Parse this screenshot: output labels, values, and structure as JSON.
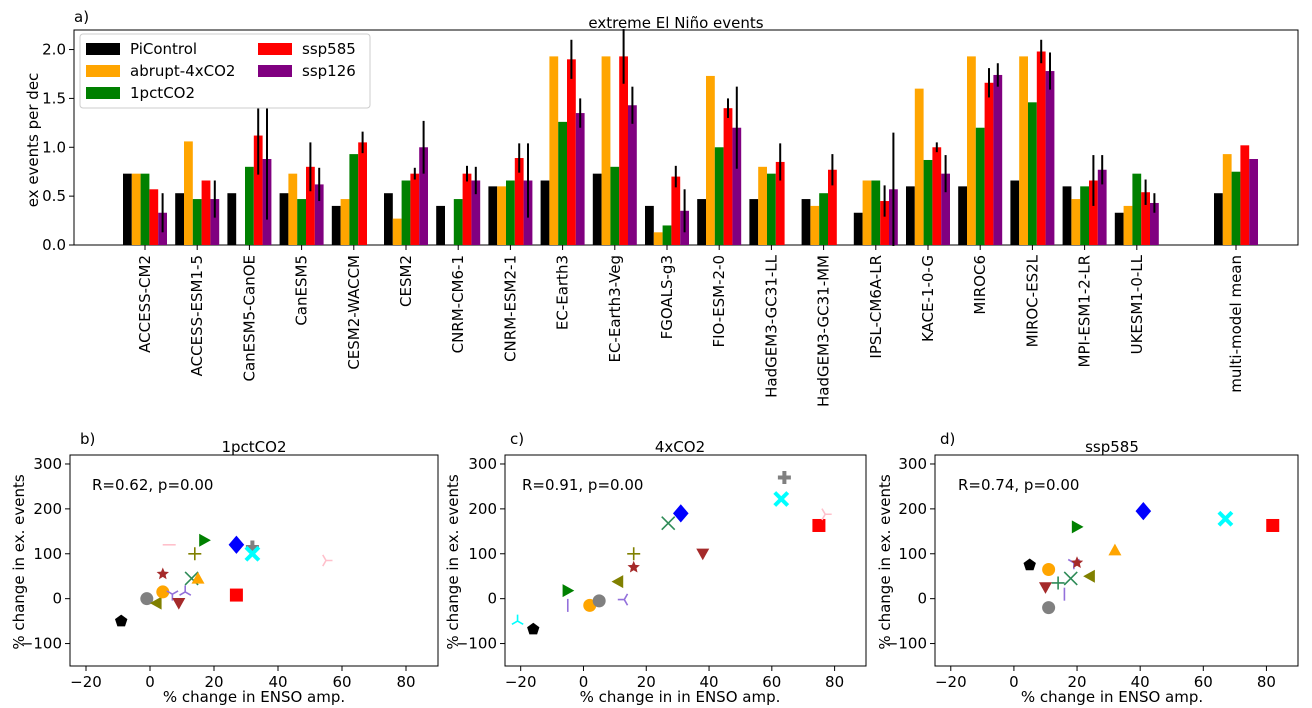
{
  "colors": {
    "PiControl": "#000000",
    "abrupt-4xCO2": "#FFA500",
    "1pctCO2": "#008000",
    "ssp585": "#FF0000",
    "ssp126": "#800080"
  },
  "chart_data": [
    {
      "type": "bar",
      "panel_label": "a)",
      "title": "extreme El Niño events",
      "xlabel": "",
      "ylabel": "ex events per dec",
      "ylim": [
        0,
        2.2
      ],
      "yticks": [
        0.0,
        0.5,
        1.0,
        1.5,
        2.0
      ],
      "ytick_labels": [
        "0.0",
        "0.5",
        "1.0",
        "1.5",
        "2.0"
      ],
      "legend_position": "top-left",
      "categories": [
        "ACCESS-CM2",
        "ACCESS-ESM1-5",
        "CanESM5-CanOE",
        "CanESM5",
        "CESM2-WACCM",
        "CESM2",
        "CNRM-CM6-1",
        "CNRM-ESM2-1",
        "EC-Earth3",
        "EC-Earth3-Veg",
        "FGOALS-g3",
        "FIO-ESM-2-0",
        "HadGEM3-GC31-LL",
        "HadGEM3-GC31-MM",
        "IPSL-CM6A-LR",
        "KACE-1-0-G",
        "MIROC6",
        "MIROC-ES2L",
        "MPI-ESM1-2-LR",
        "UKESM1-0-LL",
        "multi-model mean"
      ],
      "series": [
        {
          "name": "PiControl",
          "color": "#000000",
          "values": [
            0.73,
            0.53,
            0.53,
            0.53,
            0.4,
            0.53,
            0.4,
            0.6,
            0.66,
            0.73,
            0.4,
            0.47,
            0.47,
            0.47,
            0.33,
            0.6,
            0.6,
            0.66,
            0.6,
            0.33,
            0.53
          ],
          "errors": [
            0,
            0,
            0,
            0,
            0,
            0,
            0,
            0,
            0,
            0,
            0,
            0,
            0,
            0,
            0,
            0,
            0,
            0,
            0,
            0,
            0
          ]
        },
        {
          "name": "abrupt-4xCO2",
          "color": "#FFA500",
          "values": [
            0.73,
            1.06,
            0,
            0.73,
            0.47,
            0.27,
            0,
            0.6,
            1.93,
            1.93,
            0.13,
            1.73,
            0.8,
            0.4,
            0.66,
            1.6,
            1.93,
            1.93,
            0.47,
            0.4,
            0.93
          ],
          "errors": [
            0,
            0,
            0,
            0,
            0,
            0,
            0,
            0,
            0,
            0,
            0,
            0,
            0,
            0,
            0,
            0,
            0,
            0,
            0,
            0,
            0
          ]
        },
        {
          "name": "1pctCO2",
          "color": "#008000",
          "values": [
            0.73,
            0.47,
            0.8,
            0.47,
            0.93,
            0.66,
            0.47,
            0.66,
            1.26,
            0.8,
            0.2,
            1.0,
            0.73,
            0.53,
            0.66,
            0.87,
            1.2,
            1.46,
            0.6,
            0.73,
            0.75
          ],
          "errors": [
            0,
            0,
            0,
            0,
            0,
            0,
            0,
            0,
            0,
            0,
            0,
            0,
            0,
            0,
            0,
            0,
            0,
            0,
            0,
            0,
            0
          ]
        },
        {
          "name": "ssp585",
          "color": "#FF0000",
          "values": [
            0.57,
            0.66,
            1.12,
            0.8,
            1.05,
            0.73,
            0.73,
            0.89,
            1.9,
            1.93,
            0.7,
            1.4,
            0.85,
            0.77,
            0.45,
            1.0,
            1.66,
            1.98,
            0.66,
            0.54,
            1.02
          ],
          "errors": [
            0.0,
            0.0,
            0.4,
            0.25,
            0.11,
            0.06,
            0.08,
            0.15,
            0.2,
            0.28,
            0.11,
            0.1,
            0.19,
            0.16,
            0.16,
            0.05,
            0.15,
            0.12,
            0.26,
            0.13,
            0.0
          ]
        },
        {
          "name": "ssp126",
          "color": "#800080",
          "values": [
            0.33,
            0.47,
            0.88,
            0.62,
            0,
            1.0,
            0.66,
            0.66,
            1.35,
            1.43,
            0.35,
            1.2,
            0,
            0,
            0.57,
            0.73,
            1.74,
            1.78,
            0.77,
            0.43,
            0.88
          ],
          "errors": [
            0.2,
            0.19,
            0.62,
            0.17,
            0,
            0.27,
            0.14,
            0.38,
            0.15,
            0.19,
            0.22,
            0.42,
            0,
            0,
            0.58,
            0.19,
            0.12,
            0.19,
            0.15,
            0.1,
            0.0
          ]
        }
      ]
    },
    {
      "type": "scatter",
      "panel_label": "b)",
      "title": "1pctCO2",
      "xlabel": "% change in ENSO amp.",
      "ylabel": "% change in ex. events",
      "xlim": [
        -25,
        90
      ],
      "ylim": [
        -150,
        320
      ],
      "xticks": [
        -20,
        0,
        20,
        40,
        60,
        80
      ],
      "yticks": [
        -100,
        0,
        100,
        200,
        300
      ],
      "annotation": "R=0.62,  p=0.00",
      "points": [
        {
          "x": -9,
          "y": -50,
          "marker": "pentagon",
          "color": "#000000"
        },
        {
          "x": -1,
          "y": 0,
          "marker": "circle",
          "color": "#808080"
        },
        {
          "x": 2,
          "y": -10,
          "marker": "tri-left",
          "color": "#808000"
        },
        {
          "x": 4,
          "y": 15,
          "marker": "circle",
          "color": "#FFA500"
        },
        {
          "x": 4,
          "y": 55,
          "marker": "star",
          "color": "#A52A2A"
        },
        {
          "x": 6,
          "y": 120,
          "marker": "hline",
          "color": "#FFC0CB"
        },
        {
          "x": 7,
          "y": 10,
          "marker": "tri-down",
          "color": "#9370DB"
        },
        {
          "x": 9,
          "y": -10,
          "marker": "tri-down-filled",
          "color": "#A52A2A"
        },
        {
          "x": 11,
          "y": 15,
          "marker": "tri-up-thin",
          "color": "#9370DB"
        },
        {
          "x": 13,
          "y": 45,
          "marker": "x",
          "color": "#2E8B57"
        },
        {
          "x": 14,
          "y": 100,
          "marker": "plus",
          "color": "#808000"
        },
        {
          "x": 15,
          "y": 45,
          "marker": "tri-up-filled",
          "color": "#FFA500"
        },
        {
          "x": 17,
          "y": 130,
          "marker": "tri-right",
          "color": "#008000"
        },
        {
          "x": 27,
          "y": 120,
          "marker": "diamond",
          "color": "#0000FF"
        },
        {
          "x": 27,
          "y": 8,
          "marker": "square",
          "color": "#FF0000"
        },
        {
          "x": 32,
          "y": 115,
          "marker": "plus-thick",
          "color": "#808080"
        },
        {
          "x": 32,
          "y": 100,
          "marker": "x-thick",
          "color": "#00FFFF"
        },
        {
          "x": 55,
          "y": 85,
          "marker": "tri-right-thin",
          "color": "#FFC0CB"
        }
      ]
    },
    {
      "type": "scatter",
      "panel_label": "c)",
      "title": "4xCO2",
      "xlabel": "% change in in ENSO amp.",
      "ylabel": "% change in ex. events",
      "xlim": [
        -25,
        90
      ],
      "ylim": [
        -150,
        320
      ],
      "xticks": [
        -20,
        0,
        20,
        40,
        60,
        80
      ],
      "yticks": [
        -100,
        0,
        100,
        200,
        300
      ],
      "annotation": "R=0.91,  p=0.00",
      "points": [
        {
          "x": -16,
          "y": -68,
          "marker": "pentagon",
          "color": "#000000"
        },
        {
          "x": -21,
          "y": -50,
          "marker": "tri-up-thin",
          "color": "#00FFFF"
        },
        {
          "x": -5,
          "y": -15,
          "marker": "vline",
          "color": "#9370DB"
        },
        {
          "x": -5,
          "y": 18,
          "marker": "tri-right",
          "color": "#008000"
        },
        {
          "x": 2,
          "y": -15,
          "marker": "circle",
          "color": "#FFA500"
        },
        {
          "x": 5,
          "y": -5,
          "marker": "circle",
          "color": "#808080"
        },
        {
          "x": 11,
          "y": 38,
          "marker": "tri-left",
          "color": "#808000"
        },
        {
          "x": 13,
          "y": -2,
          "marker": "tri-left-thin",
          "color": "#9370DB"
        },
        {
          "x": 16,
          "y": 70,
          "marker": "star",
          "color": "#A52A2A"
        },
        {
          "x": 16,
          "y": 100,
          "marker": "plus",
          "color": "#808000"
        },
        {
          "x": 27,
          "y": 168,
          "marker": "x",
          "color": "#2E8B57"
        },
        {
          "x": 31,
          "y": 190,
          "marker": "diamond",
          "color": "#0000FF"
        },
        {
          "x": 38,
          "y": 100,
          "marker": "tri-down-filled",
          "color": "#A52A2A"
        },
        {
          "x": 63,
          "y": 222,
          "marker": "x-thick",
          "color": "#00FFFF"
        },
        {
          "x": 64,
          "y": 270,
          "marker": "plus-thick",
          "color": "#808080"
        },
        {
          "x": 75,
          "y": 163,
          "marker": "square",
          "color": "#FF0000"
        },
        {
          "x": 77,
          "y": 188,
          "marker": "tri-right-thin",
          "color": "#FFC0CB"
        }
      ]
    },
    {
      "type": "scatter",
      "panel_label": "d)",
      "title": "ssp585",
      "xlabel": "% change in ENSO amp.",
      "ylabel": "% change in ex. events",
      "xlim": [
        -25,
        90
      ],
      "ylim": [
        -150,
        320
      ],
      "xticks": [
        -20,
        0,
        20,
        40,
        60,
        80
      ],
      "yticks": [
        -100,
        0,
        100,
        200,
        300
      ],
      "annotation": "R=0.74,  p=0.00",
      "points": [
        {
          "x": 5,
          "y": 75,
          "marker": "pentagon",
          "color": "#000000"
        },
        {
          "x": 10,
          "y": 25,
          "marker": "tri-down-filled",
          "color": "#A52A2A"
        },
        {
          "x": 11,
          "y": 65,
          "marker": "circle",
          "color": "#FFA500"
        },
        {
          "x": 11,
          "y": -20,
          "marker": "circle",
          "color": "#808080"
        },
        {
          "x": 14,
          "y": 35,
          "marker": "plus",
          "color": "#2E8B57"
        },
        {
          "x": 16,
          "y": 10,
          "marker": "vline",
          "color": "#9370DB"
        },
        {
          "x": 18,
          "y": 45,
          "marker": "x",
          "color": "#2E8B57"
        },
        {
          "x": 19,
          "y": 80,
          "marker": "tri-down",
          "color": "#9370DB"
        },
        {
          "x": 20,
          "y": 80,
          "marker": "star",
          "color": "#A52A2A"
        },
        {
          "x": 20,
          "y": 160,
          "marker": "tri-right",
          "color": "#008000"
        },
        {
          "x": 24,
          "y": 50,
          "marker": "tri-left",
          "color": "#808000"
        },
        {
          "x": 32,
          "y": 108,
          "marker": "tri-up-filled",
          "color": "#FFA500"
        },
        {
          "x": 41,
          "y": 195,
          "marker": "diamond",
          "color": "#0000FF"
        },
        {
          "x": 67,
          "y": 178,
          "marker": "x-thick",
          "color": "#00FFFF"
        },
        {
          "x": 82,
          "y": 163,
          "marker": "square",
          "color": "#FF0000"
        }
      ]
    }
  ]
}
